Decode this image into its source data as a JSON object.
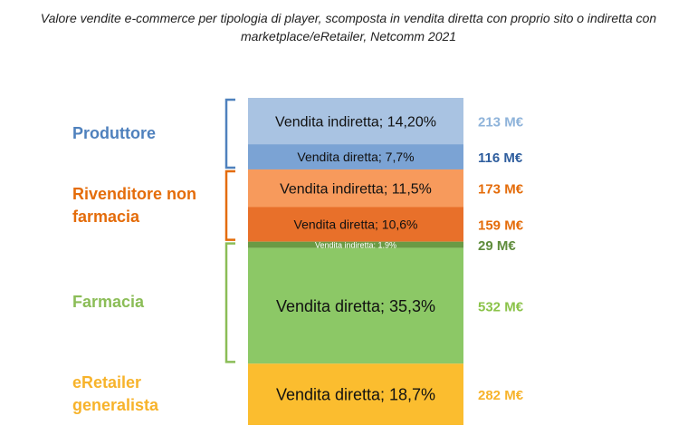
{
  "chart_data": {
    "type": "bar",
    "title": "Valore vendite e-commerce per tipologia di player, scomposta in vendita diretta con proprio sito o indiretta con marketplace/eRetailer, Netcomm 2021",
    "stacked": true,
    "groups": [
      {
        "name": "Produttore",
        "color": "#4f81bd"
      },
      {
        "name": "Rivenditore non farmacia",
        "color": "#e46c0a"
      },
      {
        "name": "Farmacia",
        "color": "#8bbd57"
      },
      {
        "name": "eRetailer generalista",
        "color": "#f7b32b"
      }
    ],
    "segments": [
      {
        "group": "Produttore",
        "label": "Vendita indiretta; 14,20%",
        "percent": 14.2,
        "value_label": "213 M€",
        "value": 213,
        "color": "#a9c3e2",
        "value_color": "#8eb3da"
      },
      {
        "group": "Produttore",
        "label": "Vendita diretta; 7,7%",
        "percent": 7.7,
        "value_label": "116 M€",
        "value": 116,
        "color": "#7ba3d4",
        "value_color": "#2f5e9e"
      },
      {
        "group": "Rivenditore non farmacia",
        "label": "Vendita indiretta; 11,5%",
        "percent": 11.5,
        "value_label": "173 M€",
        "value": 173,
        "color": "#f79a5c",
        "value_color": "#e46c0a"
      },
      {
        "group": "Rivenditore non farmacia",
        "label": "Vendita diretta; 10,6%",
        "percent": 10.6,
        "value_label": "159 M€",
        "value": 159,
        "color": "#e8702a",
        "value_color": "#e46c0a"
      },
      {
        "group": "Farmacia",
        "label": "Vendita indiretta; 1,9%",
        "percent": 1.9,
        "value_label": "29 M€",
        "value": 29,
        "color": "#6a9a45",
        "value_color": "#5f8c3c"
      },
      {
        "group": "Farmacia",
        "label": "Vendita diretta; 35,3%",
        "percent": 35.3,
        "value_label": "532 M€",
        "value": 532,
        "color": "#8cc866",
        "value_color": "#8bc34a"
      },
      {
        "group": "eRetailer generalista",
        "label": "Vendita diretta; 18,7%",
        "percent": 18.7,
        "value_label": "282 M€",
        "value": 282,
        "color": "#fbbd2f",
        "value_color": "#f7b32b"
      }
    ]
  }
}
